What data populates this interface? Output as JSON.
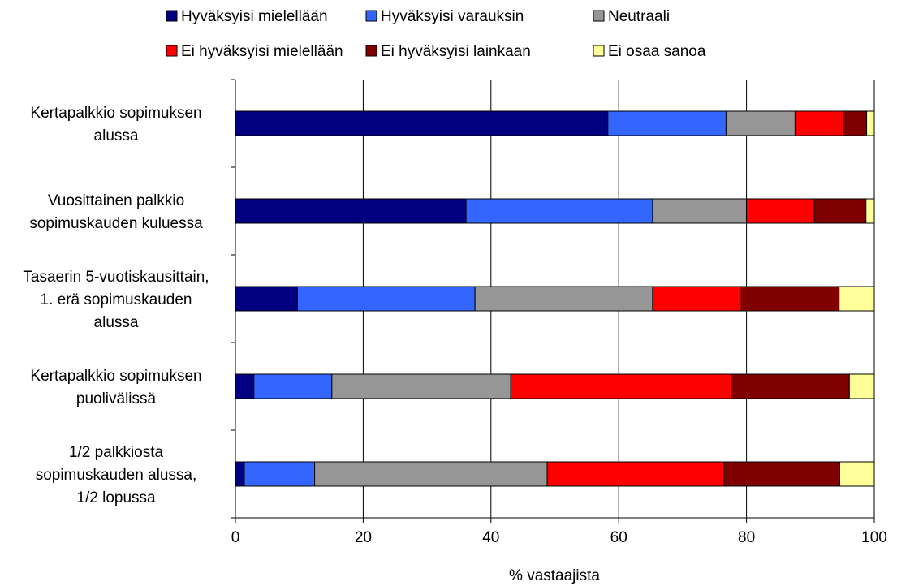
{
  "chart_data": {
    "type": "bar",
    "orientation": "horizontal",
    "stacked": true,
    "categories": [
      [
        "Kertapalkkio sopimuksen",
        "alussa"
      ],
      [
        "Vuosittainen palkkio",
        "sopimuskauden kuluessa"
      ],
      [
        "Tasaerin 5-vuotiskausittain,",
        "1. erä sopimuskauden",
        "alussa"
      ],
      [
        "Kertapalkkio sopimuksen",
        "puolivälissä"
      ],
      [
        "1/2 palkkiosta",
        "sopimuskauden alussa,",
        "1/2 lopussa"
      ]
    ],
    "series": [
      {
        "name": "Hyväksyisi mielellään",
        "color": "#000080",
        "values": [
          58.3,
          36.1,
          9.7,
          2.9,
          1.4
        ]
      },
      {
        "name": "Hyväksyisi varauksin",
        "color": "#3366ff",
        "values": [
          18.5,
          29.2,
          27.8,
          12.2,
          11.0
        ]
      },
      {
        "name": "Neutraali",
        "color": "#969696",
        "values": [
          10.8,
          14.7,
          27.8,
          28.0,
          36.4
        ]
      },
      {
        "name": "Ei hyväksyisi mielellään",
        "color": "#ff0000",
        "values": [
          7.6,
          10.6,
          13.9,
          34.5,
          27.7
        ]
      },
      {
        "name": "Ei hyväksyisi lainkaan",
        "color": "#800000",
        "values": [
          3.6,
          8.1,
          15.3,
          18.5,
          18.1
        ]
      },
      {
        "name": "Ei osaa sanoa",
        "color": "#ffff99",
        "values": [
          1.2,
          1.3,
          5.5,
          3.9,
          5.4
        ]
      }
    ],
    "xlim": [
      0,
      100
    ],
    "xticks": [
      0,
      20,
      40,
      60,
      80,
      100
    ],
    "xlabel": "% vastaajista",
    "ylabel": "",
    "title": "",
    "grid": "vertical",
    "legend_position": "top"
  }
}
